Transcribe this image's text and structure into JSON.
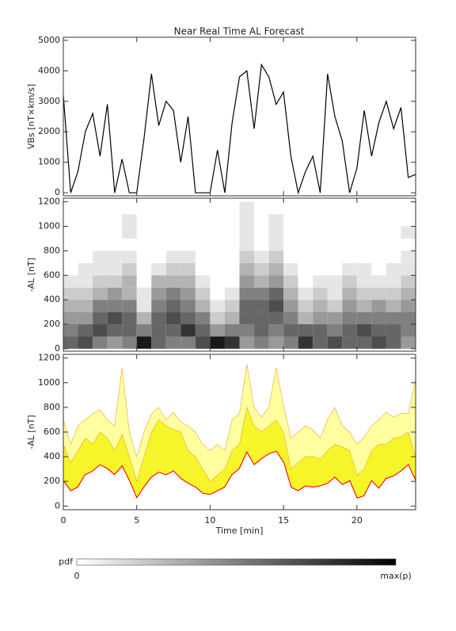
{
  "chart_data": [
    {
      "type": "line",
      "title": "Near Real Time AL Forecast",
      "ylabel": "VBs [nT×km/s]",
      "x": [
        0,
        0.5,
        1,
        1.5,
        2,
        2.5,
        3,
        3.5,
        4,
        4.5,
        5,
        5.5,
        6,
        6.5,
        7,
        7.5,
        8,
        8.5,
        9,
        9.5,
        10,
        10.5,
        11,
        11.5,
        12,
        12.5,
        13,
        13.5,
        14,
        14.5,
        15,
        15.5,
        16,
        16.5,
        17,
        17.5,
        18,
        18.5,
        19,
        19.5,
        20,
        20.5,
        21,
        21.5,
        22,
        22.5,
        23,
        23.5,
        24
      ],
      "values": [
        3200,
        0,
        700,
        2000,
        2600,
        1200,
        2900,
        0,
        1100,
        0,
        0,
        1800,
        3900,
        2200,
        3000,
        2700,
        1000,
        2500,
        0,
        0,
        0,
        1400,
        0,
        2300,
        3800,
        4000,
        2100,
        4200,
        3800,
        2900,
        3300,
        1200,
        0,
        700,
        1200,
        0,
        3900,
        2500,
        1700,
        0,
        800,
        2700,
        1200,
        2300,
        3000,
        2100,
        2800,
        500,
        600
      ],
      "color": "#000000",
      "xlim": [
        0,
        24
      ],
      "ylim": [
        -100,
        5100
      ],
      "yticks": [
        0,
        1000,
        2000,
        3000,
        4000,
        5000
      ]
    },
    {
      "type": "heatmap",
      "ylabel": "-AL [nT]",
      "x_bins": [
        0,
        1,
        2,
        3,
        4,
        5,
        6,
        7,
        8,
        9,
        10,
        11,
        12,
        13,
        14,
        15,
        16,
        17,
        18,
        19,
        20,
        21,
        22,
        23,
        24
      ],
      "y_bins": [
        0,
        100,
        200,
        300,
        400,
        500,
        600,
        700,
        800,
        900,
        1000,
        1100,
        1200
      ],
      "values": [
        [
          0.6,
          0.5,
          0.4,
          0.3,
          0.2,
          0.1,
          0,
          0,
          0,
          0,
          0,
          0
        ],
        [
          0.7,
          0.6,
          0.4,
          0.3,
          0.2,
          0.1,
          0.1,
          0,
          0,
          0,
          0,
          0
        ],
        [
          0.5,
          0.7,
          0.6,
          0.5,
          0.3,
          0.2,
          0.1,
          0.1,
          0,
          0,
          0,
          0
        ],
        [
          0.4,
          0.6,
          0.7,
          0.5,
          0.4,
          0.2,
          0.1,
          0.1,
          0,
          0,
          0,
          0
        ],
        [
          0.5,
          0.6,
          0.6,
          0.5,
          0.3,
          0.3,
          0.2,
          0.1,
          0,
          0.1,
          0.1,
          0
        ],
        [
          0.9,
          0.5,
          0.3,
          0.1,
          0.1,
          0,
          0,
          0,
          0,
          0,
          0,
          0
        ],
        [
          0.6,
          0.6,
          0.6,
          0.5,
          0.4,
          0.3,
          0.1,
          0,
          0,
          0,
          0,
          0
        ],
        [
          0.5,
          0.6,
          0.7,
          0.6,
          0.5,
          0.3,
          0.2,
          0.1,
          0,
          0,
          0,
          0
        ],
        [
          0.5,
          0.8,
          0.6,
          0.5,
          0.4,
          0.3,
          0.2,
          0.1,
          0,
          0,
          0,
          0
        ],
        [
          0.7,
          0.6,
          0.5,
          0.3,
          0.2,
          0.1,
          0,
          0,
          0,
          0,
          0,
          0
        ],
        [
          0.9,
          0.4,
          0.2,
          0.1,
          0,
          0,
          0,
          0,
          0,
          0,
          0,
          0
        ],
        [
          0.8,
          0.5,
          0.3,
          0.2,
          0.1,
          0,
          0,
          0,
          0,
          0,
          0,
          0
        ],
        [
          0.4,
          0.5,
          0.6,
          0.6,
          0.5,
          0.4,
          0.3,
          0.2,
          0.1,
          0.1,
          0.1,
          0.1
        ],
        [
          0.5,
          0.6,
          0.6,
          0.6,
          0.5,
          0.3,
          0.2,
          0.1,
          0,
          0,
          0,
          0
        ],
        [
          0.4,
          0.5,
          0.6,
          0.7,
          0.6,
          0.4,
          0.3,
          0.2,
          0.1,
          0.1,
          0.1,
          0
        ],
        [
          0.5,
          0.6,
          0.5,
          0.4,
          0.3,
          0.2,
          0.1,
          0,
          0,
          0,
          0,
          0
        ],
        [
          0.8,
          0.6,
          0.3,
          0.2,
          0.1,
          0,
          0,
          0,
          0,
          0,
          0,
          0
        ],
        [
          0.6,
          0.6,
          0.4,
          0.3,
          0.2,
          0.1,
          0,
          0,
          0,
          0,
          0,
          0
        ],
        [
          0.7,
          0.5,
          0.4,
          0.2,
          0.1,
          0.1,
          0,
          0,
          0,
          0,
          0,
          0
        ],
        [
          0.6,
          0.6,
          0.5,
          0.4,
          0.3,
          0.2,
          0.1,
          0,
          0,
          0,
          0,
          0
        ],
        [
          0.6,
          0.7,
          0.5,
          0.3,
          0.2,
          0.1,
          0.1,
          0,
          0,
          0,
          0,
          0
        ],
        [
          0.7,
          0.6,
          0.5,
          0.4,
          0.2,
          0.1,
          0,
          0,
          0,
          0,
          0,
          0
        ],
        [
          0.6,
          0.6,
          0.5,
          0.3,
          0.2,
          0.1,
          0.1,
          0,
          0,
          0,
          0,
          0
        ],
        [
          0.4,
          0.5,
          0.5,
          0.4,
          0.3,
          0.2,
          0.1,
          0.1,
          0,
          0.1,
          0,
          0
        ]
      ],
      "xlim": [
        0,
        24
      ],
      "ylim": [
        -20,
        1230
      ],
      "yticks": [
        0,
        200,
        400,
        600,
        800,
        1000,
        1200
      ],
      "colorbar": {
        "label": "pdf",
        "min_label": "0",
        "max_label": "max(p)"
      }
    },
    {
      "type": "band",
      "ylabel": "-AL [nT]",
      "xlabel": "Time [min]",
      "x": [
        0,
        0.5,
        1,
        1.5,
        2,
        2.5,
        3,
        3.5,
        4,
        4.5,
        5,
        5.5,
        6,
        6.5,
        7,
        7.5,
        8,
        8.5,
        9,
        9.5,
        10,
        10.5,
        11,
        11.5,
        12,
        12.5,
        13,
        13.5,
        14,
        14.5,
        15,
        15.5,
        16,
        16.5,
        17,
        17.5,
        18,
        18.5,
        19,
        19.5,
        20,
        20.5,
        21,
        21.5,
        22,
        22.5,
        23,
        23.5,
        24
      ],
      "series": [
        {
          "color": "#ffffa0",
          "values": [
            700,
            500,
            650,
            700,
            750,
            780,
            700,
            650,
            1120,
            600,
            400,
            600,
            750,
            800,
            700,
            760,
            680,
            650,
            600,
            500,
            450,
            500,
            450,
            700,
            750,
            1150,
            800,
            720,
            800,
            1120,
            820,
            550,
            600,
            650,
            620,
            550,
            700,
            800,
            650,
            600,
            500,
            560,
            650,
            700,
            760,
            720,
            750,
            750,
            1030
          ]
        },
        {
          "color": "#f5f52a",
          "values": [
            500,
            350,
            450,
            550,
            500,
            600,
            550,
            450,
            580,
            400,
            200,
            400,
            600,
            700,
            650,
            620,
            600,
            450,
            400,
            300,
            200,
            250,
            300,
            450,
            500,
            800,
            650,
            600,
            650,
            700,
            600,
            300,
            350,
            400,
            400,
            380,
            450,
            500,
            480,
            450,
            250,
            300,
            450,
            500,
            500,
            550,
            560,
            600,
            400
          ]
        },
        {
          "color": "#ff0000",
          "values": [
            200,
            120,
            150,
            250,
            280,
            330,
            300,
            250,
            320,
            200,
            60,
            150,
            230,
            270,
            250,
            280,
            220,
            180,
            150,
            100,
            90,
            120,
            150,
            250,
            300,
            430,
            330,
            380,
            420,
            440,
            350,
            150,
            120,
            160,
            150,
            160,
            180,
            230,
            170,
            200,
            60,
            80,
            200,
            140,
            220,
            240,
            280,
            330,
            200
          ]
        }
      ],
      "xlim": [
        0,
        24
      ],
      "xticks": [
        0,
        5,
        10,
        15,
        20
      ],
      "ylim": [
        -30,
        1230
      ],
      "yticks": [
        0,
        200,
        400,
        600,
        800,
        1000,
        1200
      ]
    }
  ]
}
